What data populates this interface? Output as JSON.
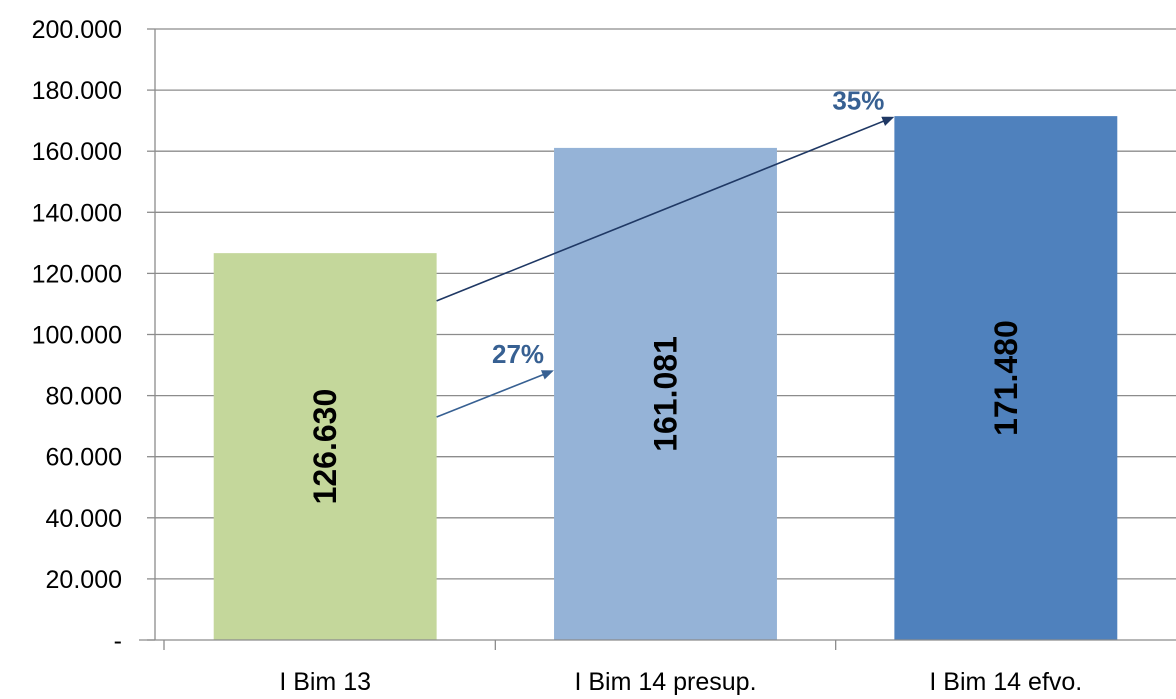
{
  "chart_data": {
    "type": "bar",
    "categories": [
      "I Bim 13",
      "I Bim 14 presup.",
      "I Bim 14 efvo."
    ],
    "values": [
      126630,
      161081,
      171480
    ],
    "value_labels": [
      "126.630",
      "161.081",
      "171.480"
    ],
    "bar_colors": [
      "#C4D79B",
      "#95B3D7",
      "#4F81BD"
    ],
    "ylim": [
      0,
      200000
    ],
    "yticks": [
      0,
      20000,
      40000,
      60000,
      80000,
      100000,
      120000,
      140000,
      160000,
      180000,
      200000
    ],
    "ytick_labels": [
      "-",
      "20.000",
      "40.000",
      "60.000",
      "80.000",
      "100.000",
      "120.000",
      "140.000",
      "160.000",
      "180.000",
      "200.000"
    ],
    "grid": true,
    "title": "",
    "xlabel": "",
    "ylabel": "",
    "annotations": [
      {
        "text": "27%",
        "from_category": 0,
        "to_category": 1,
        "color": "#376092",
        "from_value": 73000,
        "to_value": 88000
      },
      {
        "text": "35%",
        "from_category": 0,
        "to_category": 2,
        "color": "#1F3864",
        "from_value": 111000,
        "to_value": 171000
      }
    ]
  }
}
